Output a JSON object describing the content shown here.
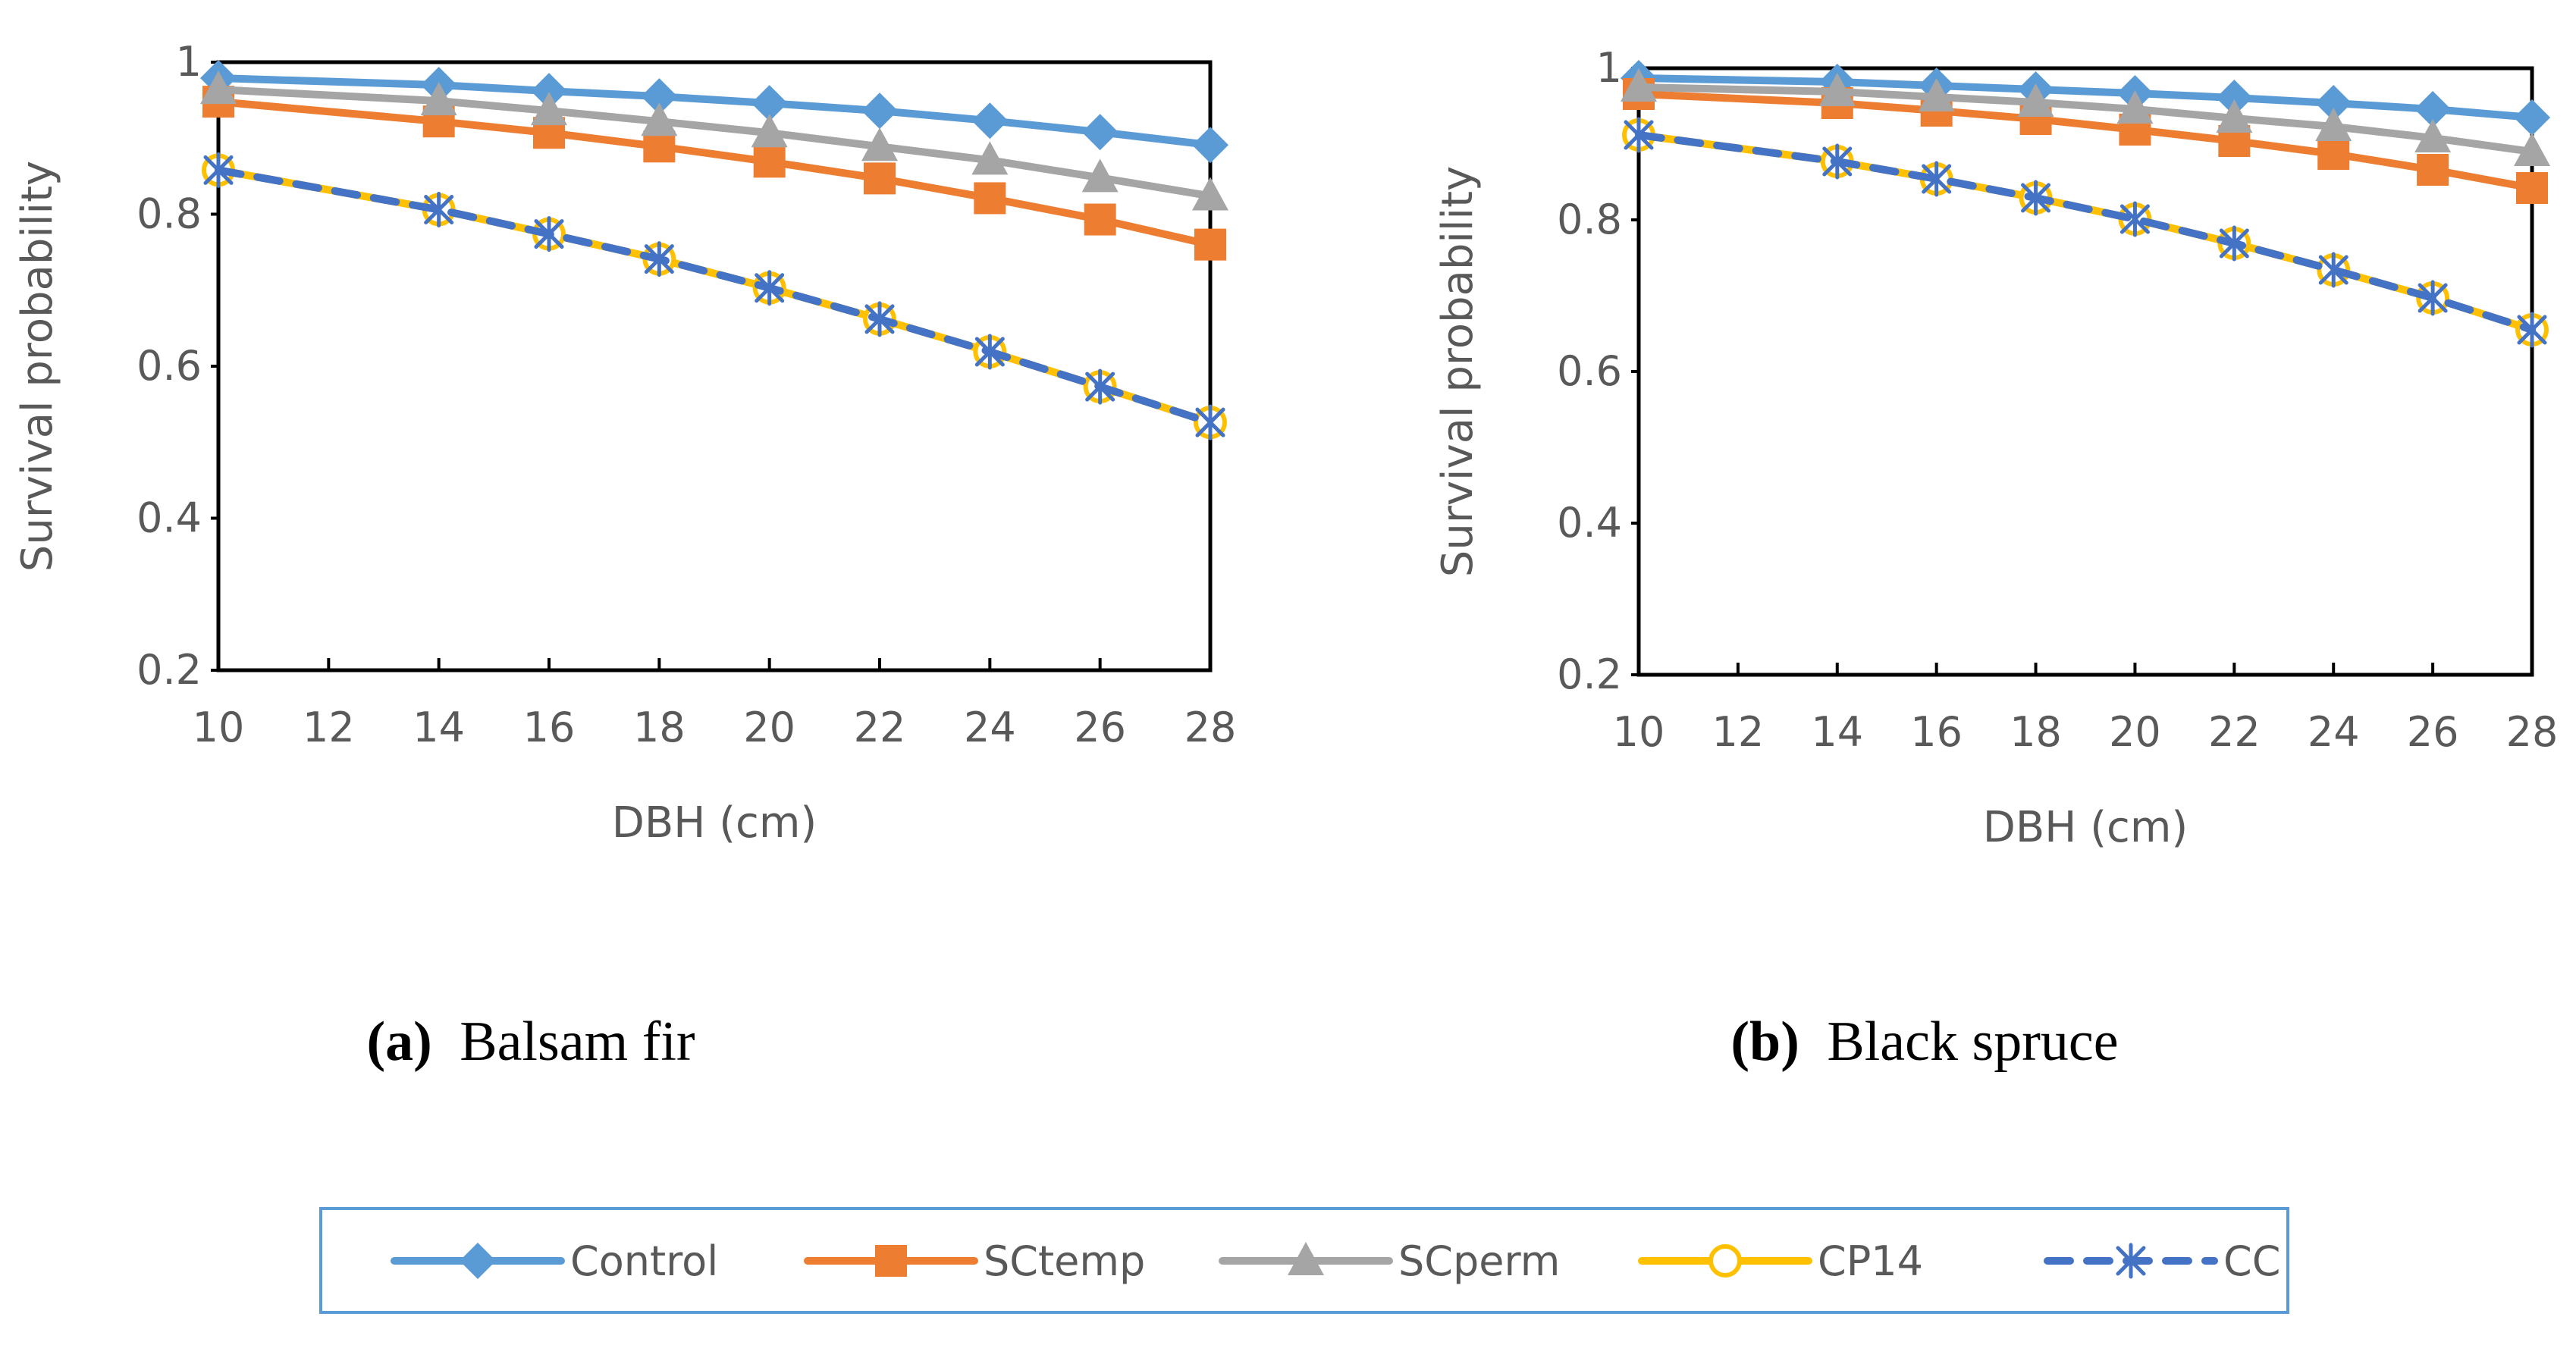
{
  "chart_data": [
    {
      "type": "line",
      "panel_label": "(a)",
      "title": "Balsam fir",
      "xlabel": "DBH (cm)",
      "ylabel": "Survival probability",
      "xlim": [
        10,
        28
      ],
      "ylim": [
        0.2,
        1.0
      ],
      "xticks": [
        "10",
        "12",
        "14",
        "16",
        "18",
        "20",
        "22",
        "24",
        "26",
        "28"
      ],
      "yticks": [
        "0.2",
        "0.4",
        "0.6",
        "0.8",
        "1"
      ],
      "x": [
        10,
        14,
        16,
        18,
        20,
        22,
        24,
        26,
        28
      ],
      "series": [
        {
          "name": "Control",
          "values": [
            0.979,
            0.97,
            0.962,
            0.955,
            0.946,
            0.936,
            0.923,
            0.908,
            0.891
          ]
        },
        {
          "name": "SCtemp",
          "values": [
            0.948,
            0.922,
            0.907,
            0.889,
            0.869,
            0.847,
            0.821,
            0.793,
            0.76
          ]
        },
        {
          "name": "SCperm",
          "values": [
            0.964,
            0.949,
            0.936,
            0.922,
            0.907,
            0.889,
            0.871,
            0.848,
            0.824
          ]
        },
        {
          "name": "CP14",
          "values": [
            0.858,
            0.806,
            0.774,
            0.741,
            0.703,
            0.662,
            0.619,
            0.573,
            0.526
          ]
        },
        {
          "name": "CC",
          "values": [
            0.858,
            0.806,
            0.774,
            0.741,
            0.703,
            0.662,
            0.619,
            0.573,
            0.526
          ]
        }
      ]
    },
    {
      "type": "line",
      "panel_label": "(b)",
      "title": "Black spruce",
      "xlabel": "DBH (cm)",
      "ylabel": "Survival probability",
      "xlim": [
        10,
        28
      ],
      "ylim": [
        0.2,
        1.0
      ],
      "xticks": [
        "10",
        "12",
        "14",
        "16",
        "18",
        "20",
        "22",
        "24",
        "26",
        "28"
      ],
      "yticks": [
        "0.2",
        "0.4",
        "0.6",
        "0.8",
        "1"
      ],
      "x": [
        10,
        14,
        16,
        18,
        20,
        22,
        24,
        26,
        28
      ],
      "series": [
        {
          "name": "Control",
          "values": [
            0.987,
            0.982,
            0.977,
            0.972,
            0.967,
            0.961,
            0.954,
            0.946,
            0.935
          ]
        },
        {
          "name": "SCtemp",
          "values": [
            0.966,
            0.954,
            0.944,
            0.933,
            0.919,
            0.904,
            0.887,
            0.866,
            0.842
          ]
        },
        {
          "name": "SCperm",
          "values": [
            0.975,
            0.969,
            0.962,
            0.955,
            0.946,
            0.934,
            0.923,
            0.908,
            0.89
          ]
        },
        {
          "name": "CP14",
          "values": [
            0.912,
            0.877,
            0.854,
            0.829,
            0.801,
            0.769,
            0.734,
            0.697,
            0.655
          ]
        },
        {
          "name": "CC",
          "values": [
            0.912,
            0.877,
            0.854,
            0.829,
            0.801,
            0.769,
            0.734,
            0.697,
            0.655
          ]
        }
      ]
    }
  ],
  "legend": {
    "items": [
      {
        "name": "Control",
        "color": "#5B9BD5",
        "marker": "diamond",
        "dash": "solid"
      },
      {
        "name": "SCtemp",
        "color": "#ED7D31",
        "marker": "square",
        "dash": "solid"
      },
      {
        "name": "SCperm",
        "color": "#A5A5A5",
        "marker": "triangle",
        "dash": "solid"
      },
      {
        "name": "CP14",
        "color": "#FFC000",
        "marker": "circle",
        "dash": "solid"
      },
      {
        "name": "CC",
        "color": "#4472C4",
        "marker": "star",
        "dash": "dashed"
      }
    ],
    "border_color": "#5B9BD5",
    "placement": "bottom-center"
  }
}
